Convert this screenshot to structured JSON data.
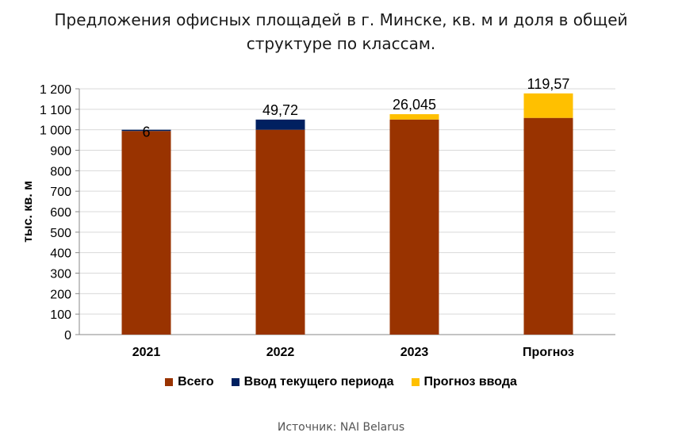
{
  "title_lines": [
    "Предложения офисных площадей в г. Минске, кв. м и доля в общей",
    "структуре по классам."
  ],
  "source": "Источник: NAI Belarus",
  "colors": {
    "total": "#993300",
    "current": "#002060",
    "forecast": "#FFC000",
    "grid": "#d9d9d9"
  },
  "chart_data": {
    "type": "bar",
    "stacked": true,
    "title": "Предложения офисных площадей в г. Минске, кв. м и доля в общей структуре по классам.",
    "xlabel": "",
    "ylabel": "тыс. кв. м",
    "ylim": [
      0,
      1200
    ],
    "yticks": [
      0,
      100,
      200,
      300,
      400,
      500,
      600,
      700,
      800,
      900,
      1000,
      1100,
      1200
    ],
    "ytick_labels": [
      "0",
      "100",
      "200",
      "300",
      "400",
      "500",
      "600",
      "700",
      "800",
      "900",
      "1 000",
      "1 100",
      "1 200"
    ],
    "grid": true,
    "legend_position": "bottom",
    "categories": [
      "2021",
      "2022",
      "2023",
      "Прогноз"
    ],
    "series": [
      {
        "name": "Всего",
        "color": "#993300",
        "values": [
          994,
          1000,
          1050,
          1058
        ]
      },
      {
        "name": "Ввод текущего периода",
        "color": "#002060",
        "values": [
          6,
          49.72,
          0,
          0
        ]
      },
      {
        "name": "Прогноз ввода",
        "color": "#FFC000",
        "values": [
          0,
          0,
          26.045,
          119.57
        ]
      }
    ],
    "data_labels": [
      "6",
      "49,72",
      "26,045",
      "119,57"
    ]
  }
}
